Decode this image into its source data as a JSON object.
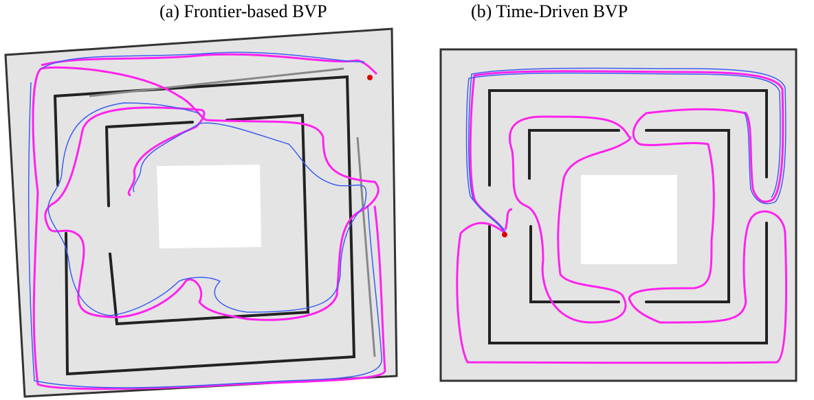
{
  "captions": {
    "a": "(a) Frontier-based BVP",
    "b": "(b) Time-Driven BVP"
  }
}
